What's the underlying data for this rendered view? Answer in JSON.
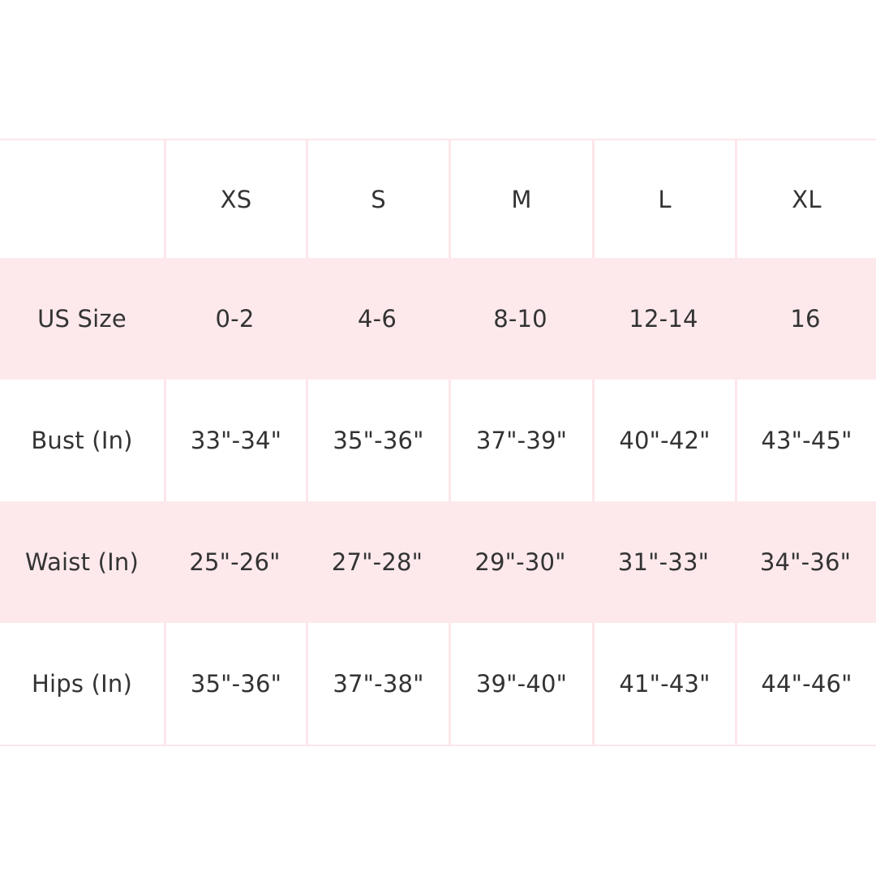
{
  "size_chart": {
    "header": [
      "",
      "XS",
      "S",
      "M",
      "L",
      "XL"
    ],
    "rows": [
      {
        "label": "US Size",
        "values": [
          "0-2",
          "4-6",
          "8-10",
          "12-14",
          "16"
        ]
      },
      {
        "label": "Bust (In)",
        "values": [
          "33\"-34\"",
          "35\"-36\"",
          "37\"-39\"",
          "40\"-42\"",
          "43\"-45\""
        ]
      },
      {
        "label": "Waist (In)",
        "values": [
          "25\"-26\"",
          "27\"-28\"",
          "29\"-30\"",
          "31\"-33\"",
          "34\"-36\""
        ]
      },
      {
        "label": "Hips (In)",
        "values": [
          "35\"-36\"",
          "37\"-38\"",
          "39\"-40\"",
          "41\"-43\"",
          "44\"-46\""
        ]
      }
    ]
  },
  "colors": {
    "stripe": "#fde9ec",
    "grid": "#fce6ea",
    "text": "#333333"
  }
}
